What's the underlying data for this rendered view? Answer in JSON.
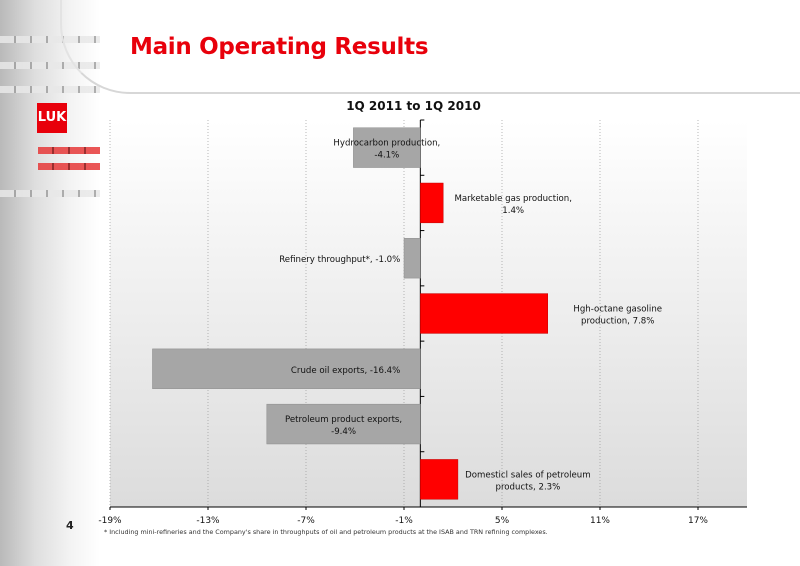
{
  "page": {
    "title": "Main Operating Results",
    "number": "4",
    "logo_text": "LUK",
    "footnote": "*  Including mini-refineries and the Company's share in throughputs of oil and petroleum products at the ISAB and TRN refining complexes.",
    "colors": {
      "title": "#e8000b",
      "positive_bar": "#ff0000",
      "negative_bar": "#a6a6a6"
    }
  },
  "chart_data": {
    "type": "bar",
    "orientation": "horizontal",
    "title": "1Q 2011 to 1Q 2010",
    "categories": [
      "Hydrocarbon production,",
      "Marketable gas production,",
      "Refinery throughput*,",
      "Hgh-octane gasoline production,",
      "Crude oil exports,",
      "Petroleum product exports,",
      "Domesticl sales of petroleum products,"
    ],
    "values": [
      -4.1,
      1.4,
      -1.0,
      7.8,
      -16.4,
      -9.4,
      2.3
    ],
    "bar_labels": [
      [
        "Hydrocarbon production,",
        "-4.1%"
      ],
      [
        "Marketable gas production,",
        "1.4%"
      ],
      [
        "Refinery throughput*, -1.0%"
      ],
      [
        "Hgh-octane gasoline",
        "production, 7.8%"
      ],
      [
        "Crude oil exports, -16.4%"
      ],
      [
        "Petroleum product exports,",
        "-9.4%"
      ],
      [
        "Domesticl sales of petroleum",
        "products, 2.3%"
      ]
    ],
    "x_ticks": [
      -19,
      -13,
      -7,
      -1,
      5,
      11,
      17
    ],
    "x_tick_labels": [
      "-19%",
      "-13%",
      "-7%",
      "-1%",
      "5%",
      "11%",
      "17%"
    ],
    "xlim": [
      -19,
      20
    ],
    "grid": "vertical dotted",
    "legend": "none"
  }
}
